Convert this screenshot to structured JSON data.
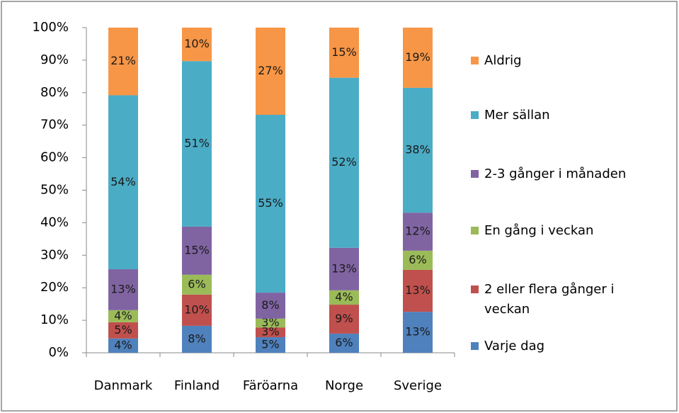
{
  "chart_data": {
    "type": "stacked_bar",
    "categories": [
      "Danmark",
      "Finland",
      "Färöarna",
      "Norge",
      "Sverige"
    ],
    "ylim": [
      0,
      100
    ],
    "yticks": [
      {
        "value": 0,
        "label": "0%"
      },
      {
        "value": 10,
        "label": "10%"
      },
      {
        "value": 20,
        "label": "20%"
      },
      {
        "value": 30,
        "label": "30%"
      },
      {
        "value": 40,
        "label": "40%"
      },
      {
        "value": 50,
        "label": "50%"
      },
      {
        "value": 60,
        "label": "60%"
      },
      {
        "value": 70,
        "label": "70%"
      },
      {
        "value": 80,
        "label": "80%"
      },
      {
        "value": 90,
        "label": "90%"
      },
      {
        "value": 100,
        "label": "100%"
      }
    ],
    "legend_position": "right",
    "series": [
      {
        "name": "Varje dag",
        "color": "#4f81bd",
        "values": [
          4.4,
          8.3,
          4.8,
          5.9,
          12.6
        ],
        "value_labels": [
          "4%",
          "8%",
          "5%",
          "6%",
          "13%"
        ]
      },
      {
        "name": "2 eller flera gånger i veckan",
        "color": "#c0504d",
        "values": [
          5.0,
          9.6,
          3.0,
          8.9,
          12.9
        ],
        "value_labels": [
          "5%",
          "10%",
          "3%",
          "9%",
          "13%"
        ]
      },
      {
        "name": "En gång i veckan",
        "color": "#9bbb59",
        "values": [
          3.7,
          6.1,
          2.7,
          4.4,
          5.9
        ],
        "value_labels": [
          "4%",
          "6%",
          "3%",
          "4%",
          "6%"
        ]
      },
      {
        "name": "2-3 gånger i månaden",
        "color": "#8064a2",
        "values": [
          12.6,
          14.8,
          8.0,
          13.1,
          11.7
        ],
        "value_labels": [
          "13%",
          "15%",
          "8%",
          "13%",
          "12%"
        ]
      },
      {
        "name": "Mer sällan",
        "color": "#4bacc6",
        "values": [
          53.5,
          50.9,
          54.7,
          52.3,
          38.4
        ],
        "value_labels": [
          "54%",
          "51%",
          "55%",
          "52%",
          "38%"
        ]
      },
      {
        "name": "Aldrig",
        "color": "#f79646",
        "values": [
          20.8,
          10.3,
          26.8,
          15.4,
          18.5
        ],
        "value_labels": [
          "21%",
          "10%",
          "27%",
          "15%",
          "19%"
        ]
      }
    ]
  }
}
